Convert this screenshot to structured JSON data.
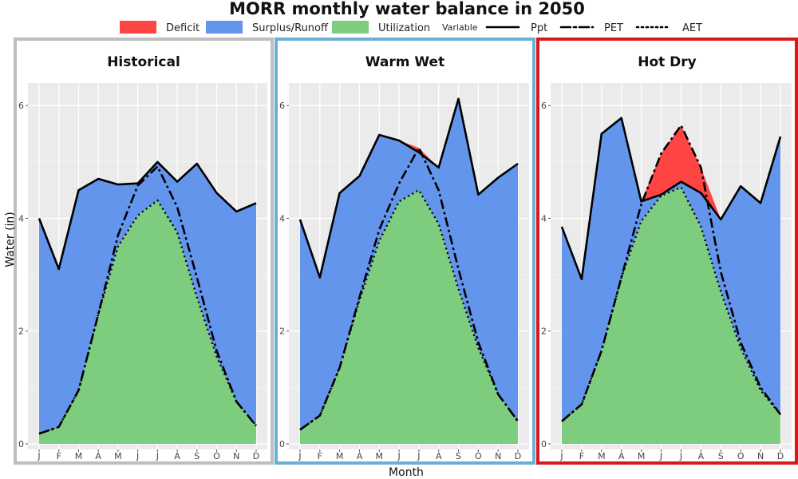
{
  "title": "MORR monthly water balance in 2050",
  "legend": {
    "fills": [
      {
        "label": "Deficit",
        "color": "#FF4444"
      },
      {
        "label": "Surplus/Runoff",
        "color": "#6495ED"
      },
      {
        "label": "Utilization",
        "color": "#7ECD7E"
      }
    ],
    "variable_title": "Variable",
    "lines": [
      {
        "label": "Ppt",
        "style": "solid"
      },
      {
        "label": "PET",
        "style": "dashdot"
      },
      {
        "label": "AET",
        "style": "dotted"
      }
    ]
  },
  "chart_data": {
    "type": "area",
    "xlabel": "Month",
    "ylabel": "Water (in)",
    "ylim": [
      -0.1,
      6.4
    ],
    "yticks": [
      0,
      2,
      4,
      6
    ],
    "categories": [
      "J",
      "F",
      "M",
      "A",
      "M",
      "J",
      "J",
      "A",
      "S",
      "O",
      "N",
      "D"
    ],
    "panels": [
      {
        "name": "Historical",
        "border_color": "#BEBEBE",
        "series": [
          {
            "name": "Ppt",
            "values": [
              4.0,
              3.1,
              4.5,
              4.7,
              4.6,
              4.62,
              5.0,
              4.65,
              4.97,
              4.45,
              4.12,
              4.27
            ]
          },
          {
            "name": "PET",
            "values": [
              0.18,
              0.3,
              0.95,
              2.3,
              3.7,
              4.58,
              4.92,
              4.2,
              2.95,
              1.65,
              0.75,
              0.32
            ]
          },
          {
            "name": "AET",
            "values": [
              0.18,
              0.3,
              0.95,
              2.3,
              3.5,
              4.05,
              4.32,
              3.75,
              2.6,
              1.55,
              0.75,
              0.32
            ]
          }
        ]
      },
      {
        "name": "Warm Wet",
        "border_color": "#6BAED6",
        "series": [
          {
            "name": "Ppt",
            "values": [
              3.98,
              2.95,
              4.45,
              4.75,
              5.48,
              5.38,
              5.17,
              4.9,
              6.12,
              4.42,
              4.72,
              4.97
            ]
          },
          {
            "name": "PET",
            "values": [
              0.25,
              0.5,
              1.35,
              2.6,
              3.8,
              4.62,
              5.25,
              4.5,
              3.1,
              1.8,
              0.88,
              0.4
            ]
          },
          {
            "name": "AET",
            "values": [
              0.25,
              0.5,
              1.35,
              2.55,
              3.6,
              4.3,
              4.5,
              3.9,
              2.75,
              1.7,
              0.88,
              0.4
            ]
          }
        ]
      },
      {
        "name": "Hot Dry",
        "border_color": "#D7191C",
        "series": [
          {
            "name": "Ppt",
            "values": [
              3.85,
              2.92,
              5.5,
              5.78,
              4.3,
              4.42,
              4.65,
              4.45,
              3.98,
              4.57,
              4.27,
              5.45
            ]
          },
          {
            "name": "PET",
            "values": [
              0.4,
              0.7,
              1.65,
              2.95,
              4.25,
              5.15,
              5.65,
              4.9,
              3.05,
              1.8,
              1.0,
              0.52
            ]
          },
          {
            "name": "AET",
            "values": [
              0.4,
              0.7,
              1.65,
              2.95,
              3.95,
              4.4,
              4.55,
              3.85,
              2.7,
              1.7,
              0.95,
              0.52
            ]
          }
        ]
      }
    ]
  }
}
